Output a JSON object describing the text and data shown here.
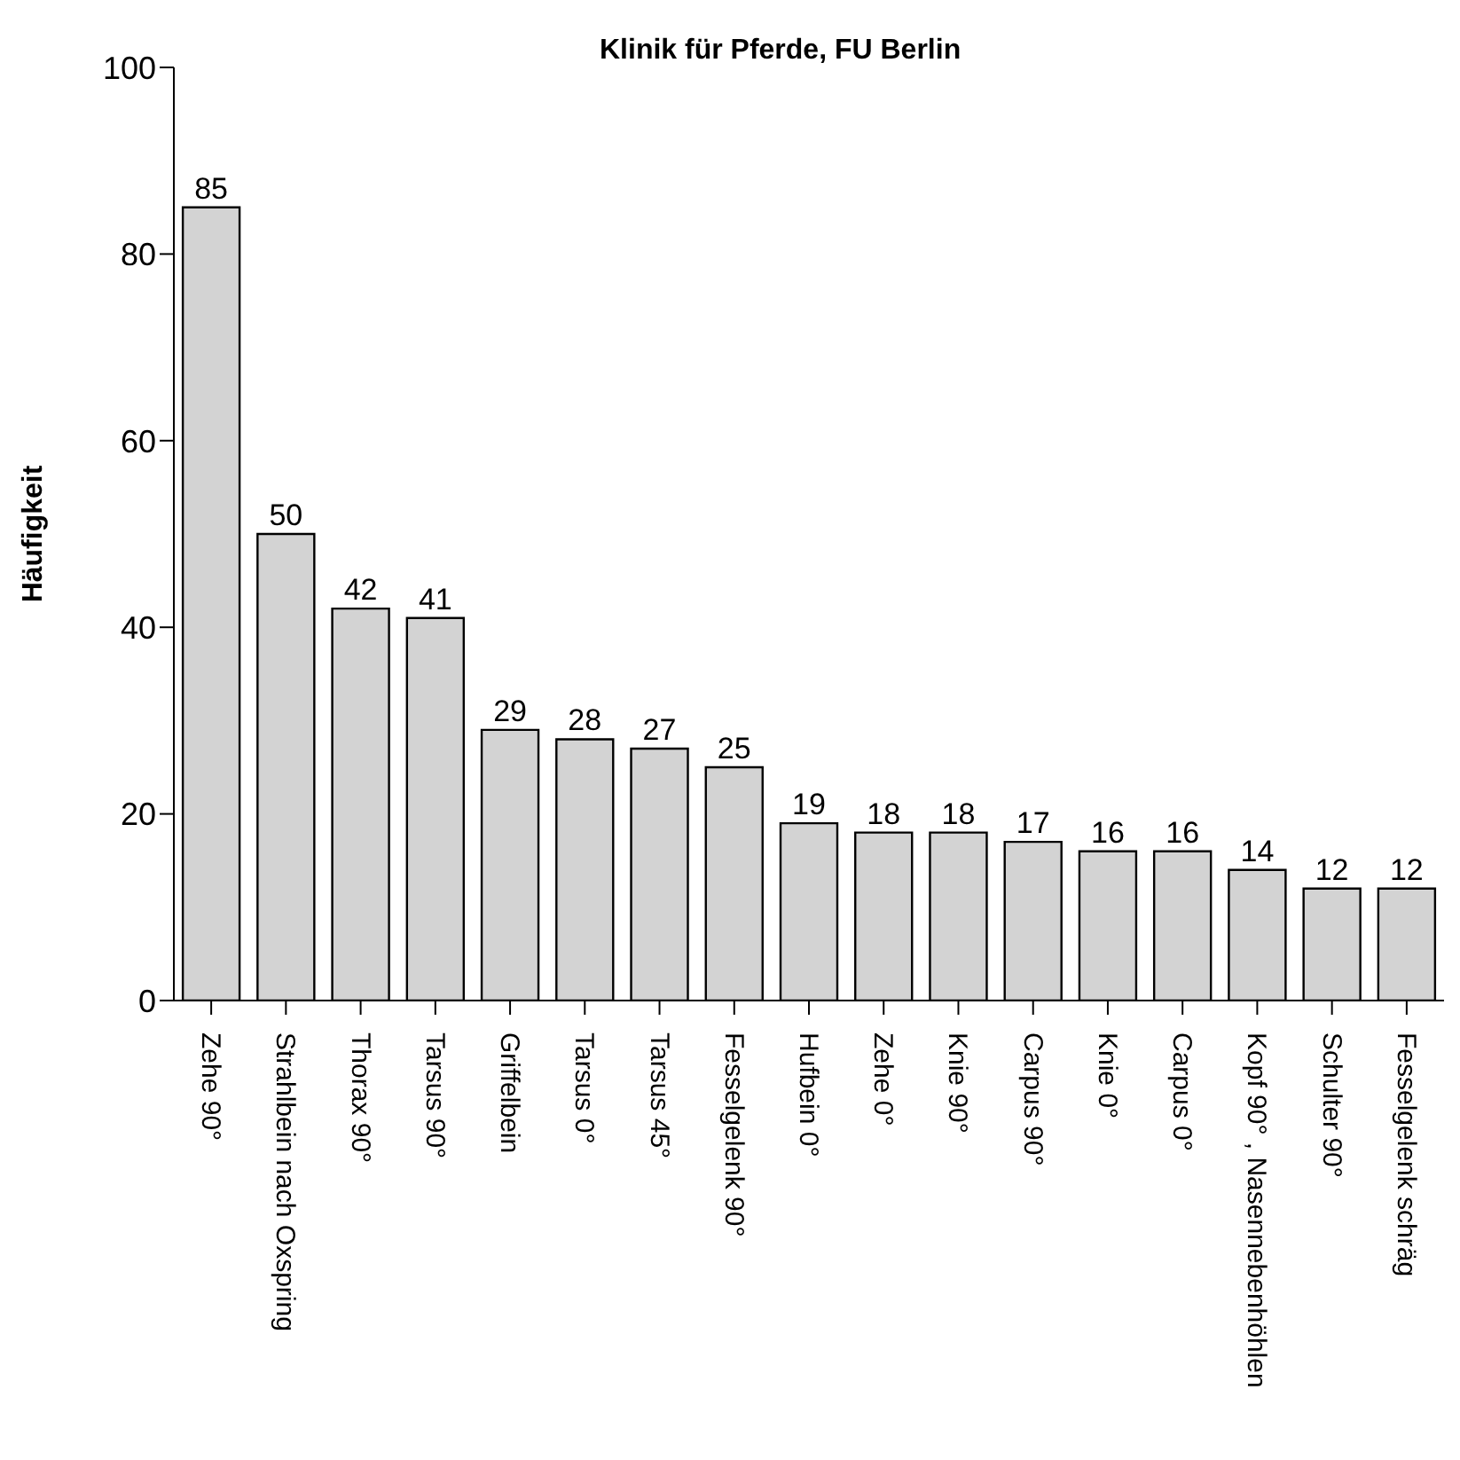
{
  "chart_data": {
    "type": "bar",
    "title": "Klinik für Pferde, FU Berlin",
    "ylabel": "Häufigkeit",
    "categories": [
      "Zehe 90°",
      "Strahlbein nach Oxspring",
      "Thorax 90°",
      "Tarsus 90°",
      "Griffelbein",
      "Tarsus 0°",
      "Tarsus 45°",
      "Fesselgelenk 90°",
      "Hufbein 0°",
      "Zehe 0°",
      "Knie 90°",
      "Carpus 90°",
      "Knie 0°",
      "Carpus 0°",
      "Kopf 90° , Nasennebenhöhlen",
      "Schulter 90°",
      "Fesselgelenk schräg"
    ],
    "values": [
      85,
      50,
      42,
      41,
      29,
      28,
      27,
      25,
      19,
      18,
      18,
      17,
      16,
      16,
      14,
      12,
      12
    ],
    "color": "#d3d3d3",
    "ylim": [
      0,
      100
    ],
    "yticks": [
      0,
      20,
      40,
      60,
      80,
      100
    ],
    "grid": false,
    "data_labels": true
  }
}
